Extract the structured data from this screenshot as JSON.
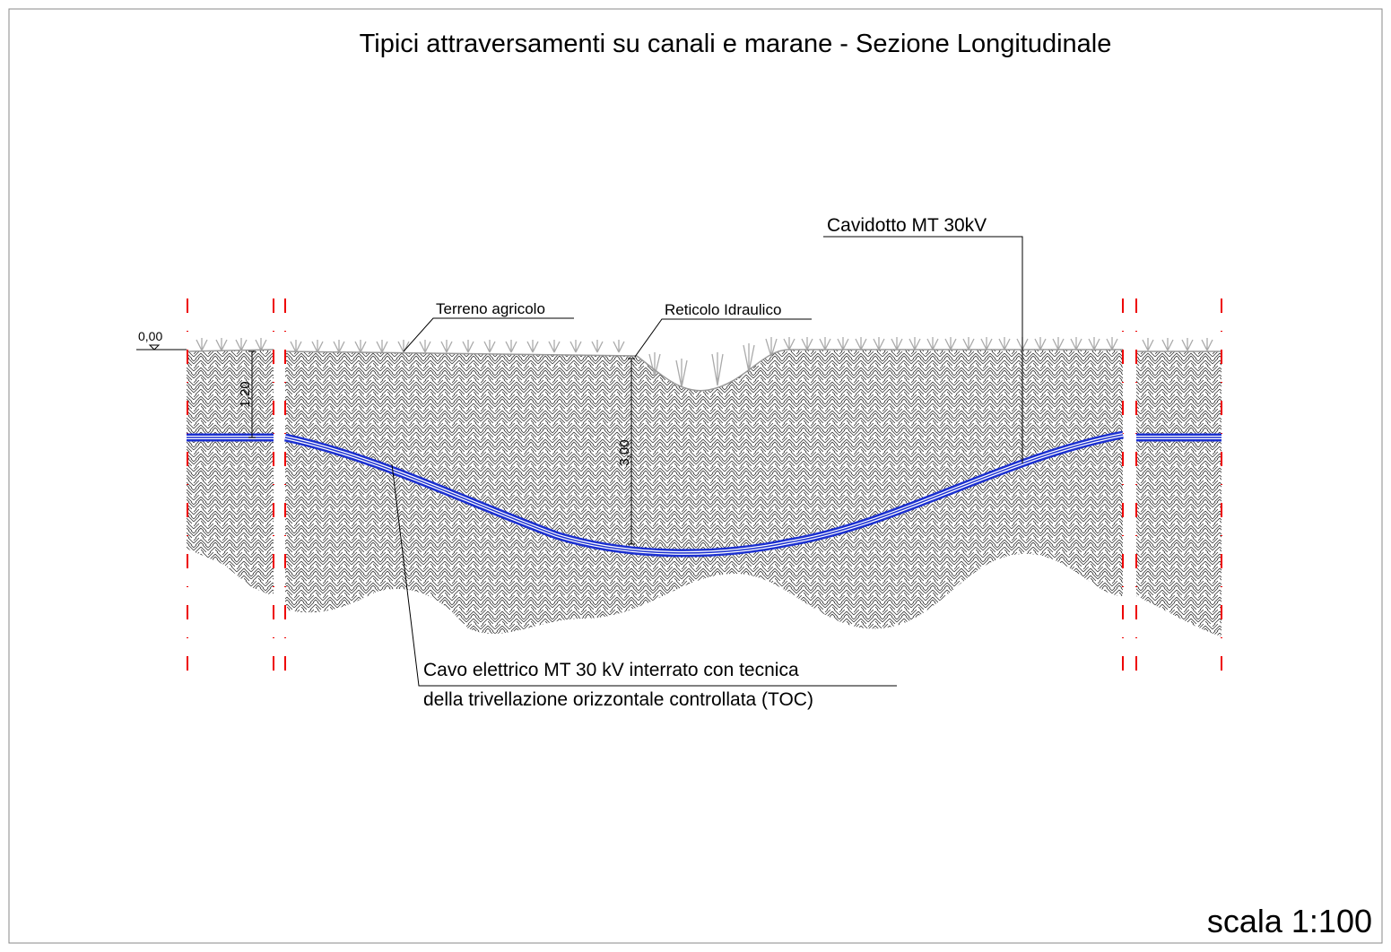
{
  "title": "Tipici attraversamenti su canali e marane - Sezione Longitudinale",
  "annotations": {
    "cavidotto": "Cavidotto MT 30kV",
    "terreno": "Terreno agricolo",
    "reticolo": "Reticolo Idraulico"
  },
  "cable_label": [
    "Cavo elettrico MT 30 kV interrato con tecnica",
    "della trivellazione orizzontale controllata (TOC)"
  ],
  "dimensions": {
    "ground_level": "0,00",
    "cable_depth": "1,20",
    "toc_depth": "3,00"
  },
  "scale": "scala 1:100"
}
